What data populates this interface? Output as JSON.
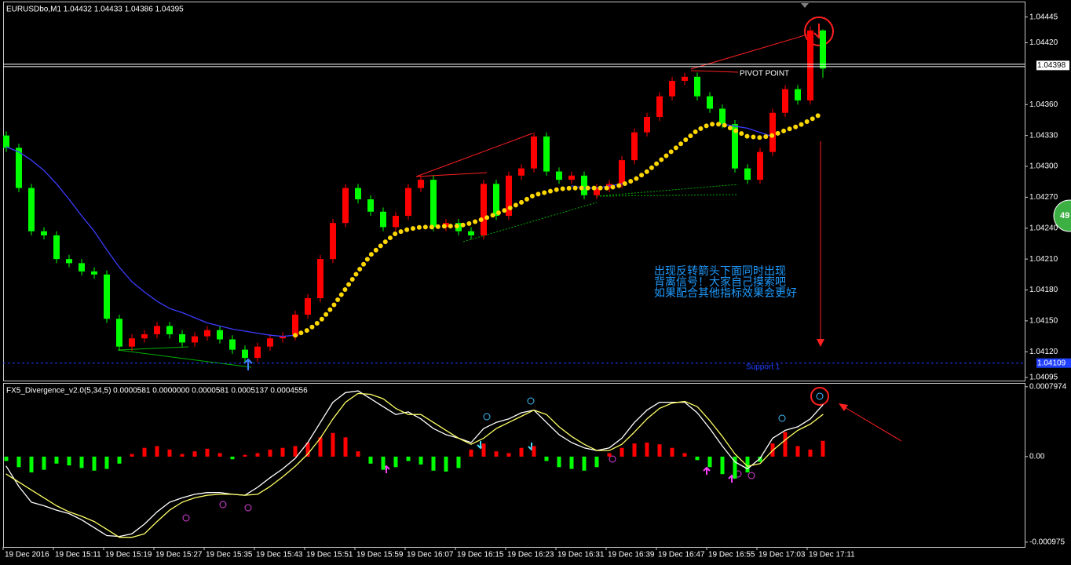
{
  "chart_data": [
    {
      "type": "candlestick",
      "title": "EURUSDbo,M1  1.04432 1.04433 1.04386 1.04395",
      "open": [
        1.0433,
        1.04318,
        1.04279,
        1.04237,
        1.04233,
        1.0421,
        1.04206,
        1.04198,
        1.04195,
        1.04152,
        1.04125,
        1.04133,
        1.04137,
        1.04145,
        1.04137,
        1.04129,
        1.04135,
        1.04141,
        1.04132,
        1.04122,
        1.04114,
        1.04125,
        1.04133,
        1.04135,
        1.04156,
        1.04172,
        1.0421,
        1.04245,
        1.04279,
        1.04268,
        1.04256,
        1.04241,
        1.04252,
        1.04279,
        1.04287,
        1.04241,
        1.04245,
        1.04237,
        1.04233,
        1.04283,
        1.04252,
        1.04291,
        1.04298,
        1.04329,
        1.04295,
        1.04287,
        1.04291,
        1.04272,
        1.04279,
        1.04283,
        1.04306,
        1.04333,
        1.04348,
        1.04368,
        1.04383,
        1.04387,
        1.04368,
        1.04356,
        1.04341,
        1.04298,
        1.04287,
        1.04314,
        1.04352,
        1.04375,
        1.04364,
        1.04432
      ],
      "high": [
        1.04334,
        1.04322,
        1.04283,
        1.04241,
        1.04237,
        1.04214,
        1.0421,
        1.04202,
        1.04199,
        1.04156,
        1.04137,
        1.04141,
        1.04149,
        1.04149,
        1.04141,
        1.04139,
        1.04145,
        1.04145,
        1.04136,
        1.04126,
        1.04129,
        1.04137,
        1.04139,
        1.0416,
        1.04176,
        1.04214,
        1.04249,
        1.04283,
        1.04283,
        1.04272,
        1.0426,
        1.04256,
        1.04283,
        1.04291,
        1.04291,
        1.04249,
        1.04249,
        1.04241,
        1.04287,
        1.04287,
        1.04295,
        1.04302,
        1.04333,
        1.04333,
        1.04299,
        1.04295,
        1.04295,
        1.04283,
        1.04287,
        1.0431,
        1.04337,
        1.04352,
        1.04372,
        1.04387,
        1.04391,
        1.04391,
        1.04372,
        1.0436,
        1.04345,
        1.04302,
        1.04318,
        1.04356,
        1.04379,
        1.04379,
        1.04436,
        1.04433
      ],
      "low": [
        1.04314,
        1.04275,
        1.04233,
        1.04229,
        1.04206,
        1.04202,
        1.04194,
        1.04191,
        1.04148,
        1.04121,
        1.04121,
        1.04129,
        1.04133,
        1.04133,
        1.04125,
        1.04125,
        1.04131,
        1.04128,
        1.04118,
        1.0411,
        1.0411,
        1.04121,
        1.04129,
        1.04131,
        1.04152,
        1.04168,
        1.04206,
        1.04241,
        1.04264,
        1.04252,
        1.04237,
        1.04237,
        1.04248,
        1.04275,
        1.04237,
        1.04237,
        1.04233,
        1.04229,
        1.04229,
        1.04248,
        1.04248,
        1.04287,
        1.04294,
        1.04291,
        1.04283,
        1.04283,
        1.04268,
        1.04268,
        1.04275,
        1.04279,
        1.04302,
        1.04329,
        1.04344,
        1.04364,
        1.04379,
        1.04364,
        1.04352,
        1.04337,
        1.04294,
        1.04283,
        1.04283,
        1.0431,
        1.04348,
        1.0436,
        1.0436,
        1.04386
      ],
      "close": [
        1.04318,
        1.04279,
        1.04237,
        1.04233,
        1.0421,
        1.04206,
        1.04198,
        1.04195,
        1.04152,
        1.04125,
        1.04133,
        1.04137,
        1.04145,
        1.04137,
        1.04129,
        1.04135,
        1.04141,
        1.04132,
        1.04122,
        1.04114,
        1.04125,
        1.04133,
        1.04135,
        1.04156,
        1.04172,
        1.0421,
        1.04245,
        1.04279,
        1.04268,
        1.04256,
        1.04241,
        1.04252,
        1.04279,
        1.04287,
        1.04241,
        1.04245,
        1.04237,
        1.04233,
        1.04283,
        1.04252,
        1.04291,
        1.04298,
        1.04329,
        1.04295,
        1.04287,
        1.04291,
        1.04272,
        1.04279,
        1.04283,
        1.04306,
        1.04333,
        1.04348,
        1.04368,
        1.04383,
        1.04387,
        1.04368,
        1.04356,
        1.04341,
        1.04298,
        1.04287,
        1.04314,
        1.04352,
        1.04375,
        1.04364,
        1.04432,
        1.04395
      ],
      "up_color": "#ff0000",
      "down_color": "#00ff00",
      "lines": [
        {
          "color": "#3c3cff",
          "values": [
            1.04319,
            1.04314,
            1.04306,
            1.04296,
            1.04283,
            1.04268,
            1.04252,
            1.04237,
            1.04219,
            1.04202,
            1.04188,
            1.04178,
            1.04169,
            1.04162,
            1.04158,
            1.04153,
            1.04148,
            1.04145,
            1.04142,
            1.0414,
            1.04138,
            1.04136,
            1.04135,
            1.04136,
            null,
            null,
            null,
            null,
            null,
            null,
            null,
            null,
            null,
            null,
            null,
            null,
            null,
            null,
            null,
            null,
            null,
            null,
            null,
            null,
            null,
            1.04281,
            1.04279,
            1.04279,
            1.04281,
            1.04283,
            null,
            null,
            null,
            null,
            null,
            null,
            null,
            1.04341,
            1.04339,
            1.04337,
            1.04333,
            1.04329,
            null,
            null,
            null,
            null
          ]
        },
        {
          "color": "#ffd700",
          "dotted": true,
          "values": [
            null,
            null,
            null,
            null,
            null,
            null,
            null,
            null,
            null,
            null,
            null,
            null,
            null,
            null,
            null,
            null,
            null,
            null,
            null,
            null,
            null,
            null,
            null,
            1.04136,
            1.04141,
            1.0415,
            1.04164,
            1.04181,
            1.04198,
            1.04214,
            1.04225,
            1.04235,
            1.04239,
            1.04241,
            1.04241,
            1.04242,
            1.04242,
            1.04245,
            1.04249,
            1.04254,
            1.04259,
            1.04265,
            1.04272,
            1.04275,
            1.04278,
            1.04279,
            1.04279,
            1.04279,
            1.04279,
            1.04282,
            1.04287,
            1.04295,
            1.04305,
            1.04315,
            1.04325,
            1.04335,
            1.04341,
            1.04341,
            1.04335,
            1.04329,
            1.04328,
            1.0433,
            1.04335,
            1.04339,
            1.04345,
            1.04352
          ]
        }
      ],
      "ylim": [
        1.04092,
        1.0446
      ],
      "yticks": [
        1.04445,
        {
          "value": 1.0442,
          "label": "1.04420"
        },
        {
          "value": 1.0436,
          "label": "1.04360"
        },
        {
          "value": 1.0433,
          "label": "1.04330"
        },
        {
          "value": 1.043,
          "label": "1.04300"
        },
        {
          "value": 1.0427,
          "label": "1.04270"
        },
        {
          "value": 1.0424,
          "label": "1.04240"
        },
        {
          "value": 1.0421,
          "label": "1.04210"
        },
        {
          "value": 1.0418,
          "label": "1.04180"
        },
        {
          "value": 1.0415,
          "label": "1.04150"
        },
        {
          "value": 1.0412,
          "label": "1.04120"
        },
        1.04095
      ],
      "current_price": 1.04398,
      "pivot": {
        "label": "PIVOT POINT",
        "value": 1.04398
      },
      "support": {
        "label": "Support 1",
        "value": 1.04109
      },
      "time_labels": [
        "19 Dec 2016",
        "19 Dec 15:11",
        "19 Dec 15:19",
        "19 Dec 15:27",
        "19 Dec 15:35",
        "19 Dec 15:43",
        "19 Dec 15:51",
        "19 Dec 15:59",
        "19 Dec 16:07",
        "19 Dec 16:15",
        "19 Dec 16:23",
        "19 Dec 16:31",
        "19 Dec 16:39",
        "19 Dec 16:47",
        "19 Dec 16:55",
        "19 Dec 17:03",
        "19 Dec 17:11"
      ],
      "annotation": [
        "出现反转箭头下面同时出现",
        "背离信号！大家自己摸索吧",
        "如果配合其他指标效果会更好"
      ],
      "badge": "49"
    },
    {
      "type": "oscillator",
      "title": "FX5_Divergence_v2.0(5,34,5) 0.0000581 0.0000000 0.0000581 0.0005137 0.0004556",
      "values": [
        -5e-05,
        -0.00012,
        -0.00018,
        -0.00015,
        -8e-05,
        -0.0001,
        -0.00013,
        -0.00016,
        -0.00014,
        -8e-05,
        3e-05,
        0.0001,
        0.00012,
        8e-05,
        3e-05,
        6e-05,
        9e-05,
        4e-05,
        -3e-05,
        2e-05,
        4e-05,
        8e-05,
        0.0001,
        0.00012,
        0.00016,
        0.00022,
        0.00027,
        0.00022,
        6e-05,
        -8e-05,
        -0.00015,
        -0.00012,
        -5e-05,
        -9e-05,
        -0.00016,
        -0.00017,
        -0.00013,
        8e-05,
        0.00015,
        6e-05,
        4e-05,
        0.0001,
        0.00012,
        -5e-05,
        -0.00012,
        -0.00014,
        -0.00016,
        -0.00012,
        4e-05,
        0.0001,
        0.00015,
        0.00016,
        0.00014,
        0.0001,
        4e-05,
        -4e-05,
        -0.00012,
        -0.0002,
        -0.00025,
        -0.00018,
        -6e-05,
        0.00015,
        0.00028,
        0.00012,
        8e-05,
        0.00018
      ],
      "up_color": "#ff0000",
      "down_color": "#00ff00",
      "lines": [
        {
          "color": "#ffffff",
          "values": [
            -0.00011,
            -0.00034,
            -0.00052,
            -0.00056,
            -0.00061,
            -0.00065,
            -0.00072,
            -0.00081,
            -0.0009,
            -0.00091,
            -0.00088,
            -0.00077,
            -0.00063,
            -0.00052,
            -0.00047,
            -0.00043,
            -0.00041,
            -0.00041,
            -0.00043,
            -0.00044,
            -0.00035,
            -0.00024,
            -0.00014,
            -2e-05,
            0.00016,
            0.00039,
            0.00062,
            0.00073,
            0.00075,
            0.00066,
            0.00057,
            0.00048,
            0.00051,
            0.00043,
            0.00032,
            0.00025,
            0.00021,
            0.00016,
            0.00032,
            0.00039,
            0.00043,
            0.0005,
            0.00053,
            0.00039,
            0.00025,
            0.00016,
            0.0001,
            7e-05,
            0.0001,
            0.00021,
            0.00039,
            0.00053,
            0.00062,
            0.00062,
            0.00062,
            0.0005,
            0.00032,
            0.00012,
            -6e-05,
            -0.00014,
            -2e-05,
            0.00021,
            0.0003,
            0.00034,
            0.00043,
            0.00059
          ]
        },
        {
          "color": "#ffff66",
          "values": [
            -0.0002,
            -0.00029,
            -0.00038,
            -0.00047,
            -0.00056,
            -0.00063,
            -0.00068,
            -0.00074,
            -0.00083,
            -0.00092,
            -0.00092,
            -0.00088,
            -0.00074,
            -0.00061,
            -0.00052,
            -0.00047,
            -0.00044,
            -0.00043,
            -0.00043,
            -0.00044,
            -0.00043,
            -0.00034,
            -0.00023,
            -0.00011,
            3e-05,
            0.00021,
            0.00043,
            0.00062,
            0.00072,
            0.00071,
            0.00066,
            0.00055,
            0.00048,
            0.00048,
            0.00039,
            0.0003,
            0.00021,
            0.00014,
            0.00021,
            0.00032,
            0.00039,
            0.00046,
            0.00053,
            0.00048,
            0.00034,
            0.00023,
            0.00014,
            7e-05,
            7e-05,
            0.00014,
            0.00028,
            0.00043,
            0.00055,
            0.00061,
            0.00063,
            0.00057,
            0.00041,
            0.00023,
            3e-05,
            -0.00011,
            -8e-05,
            7e-05,
            0.00019,
            0.0003,
            0.00037,
            0.00048
          ]
        }
      ],
      "ylim": [
        -0.00103,
        0.00084
      ],
      "yticks": [
        0.0007974,
        {
          "value": 0,
          "label": "0.00"
        },
        -0.000975
      ]
    }
  ]
}
